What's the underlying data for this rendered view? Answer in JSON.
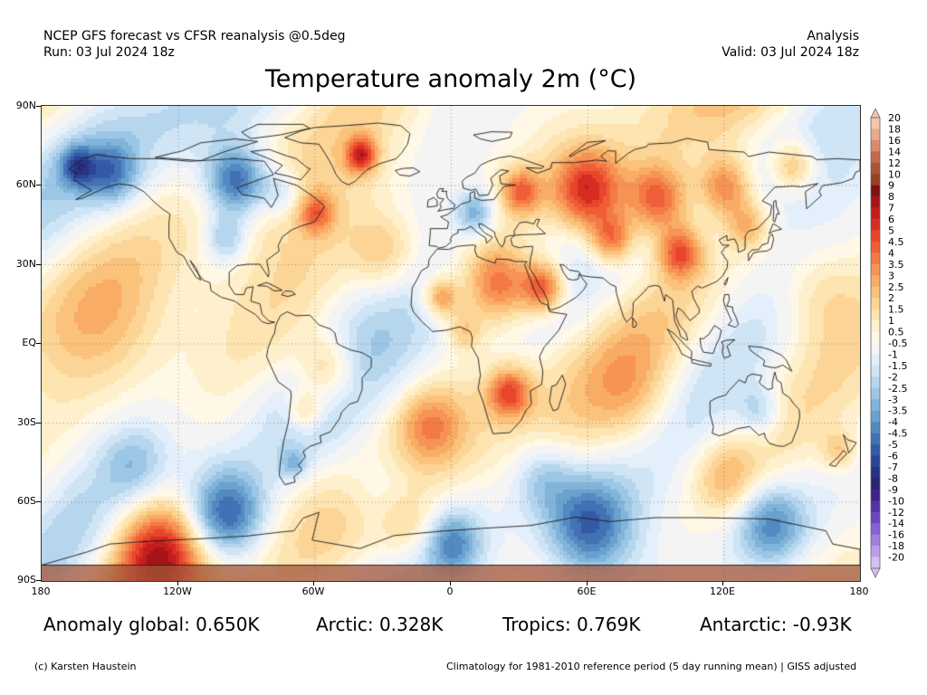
{
  "header": {
    "left_line1": "NCEP GFS forecast vs CFSR reanalysis @0.5deg",
    "left_line2": "Run: 03 Jul 2024 18z",
    "right_line1": "Analysis",
    "right_line2": "Valid: 03 Jul 2024 18z"
  },
  "title": "Temperature anomaly 2m (°C)",
  "axes": {
    "lat_labels": [
      "90N",
      "60N",
      "30N",
      "EQ",
      "30S",
      "60S",
      "90S"
    ],
    "lon_labels": [
      "180",
      "120W",
      "60W",
      "0",
      "60E",
      "120E",
      "180"
    ]
  },
  "colorbar": {
    "unit": "°C",
    "labels": [
      "20",
      "18",
      "16",
      "14",
      "12",
      "10",
      "9",
      "8",
      "7",
      "6",
      "5",
      "4.5",
      "4",
      "3.5",
      "3",
      "2.5",
      "2",
      "1.5",
      "1",
      "0.5",
      "-0.5",
      "-1",
      "-1.5",
      "-2",
      "-2.5",
      "-3",
      "-3.5",
      "-4",
      "-4.5",
      "-5",
      "-6",
      "-7",
      "-8",
      "-9",
      "-10",
      "-12",
      "-14",
      "-16",
      "-18",
      "-20"
    ],
    "colors": [
      "#f3c4b0",
      "#e8a98d",
      "#d98a6e",
      "#c46a4f",
      "#ad5438",
      "#963f27",
      "#7d1212",
      "#a51515",
      "#c31d1d",
      "#d82c22",
      "#e8462c",
      "#f05e38",
      "#f47a45",
      "#f79455",
      "#f9ac66",
      "#fbc27c",
      "#fcd596",
      "#fde4b0",
      "#fef0cc",
      "#fff8e6",
      "#f4f4f4",
      "#e3effa",
      "#cfe4f4",
      "#b6d6ee",
      "#9cc6e5",
      "#82b4da",
      "#69a1cf",
      "#5489c2",
      "#4371b5",
      "#345aa5",
      "#2a4593",
      "#243383",
      "#2c2470",
      "#3d238a",
      "#5331a8",
      "#6c45c2",
      "#8760d1",
      "#a27fde",
      "#bc9ee8",
      "#d5bef2"
    ],
    "above_color": "#f3c4b0",
    "below_color": "#d5bef2"
  },
  "map_style": {
    "neutral": "#f4f4f4",
    "ice": "#cfe4f4",
    "antarctica": "#a0563b",
    "coast": "#1a1a1a"
  },
  "stats": {
    "global": "Anomaly global: 0.650K",
    "arctic": "Arctic: 0.328K",
    "tropics": "Tropics: 0.769K",
    "antarctic": "Antarctic: -0.93K"
  },
  "footer": {
    "credit": "(c) Karsten Haustein",
    "climatology": "Climatology for 1981-2010 reference period (5 day running mean) | GISS adjusted"
  }
}
